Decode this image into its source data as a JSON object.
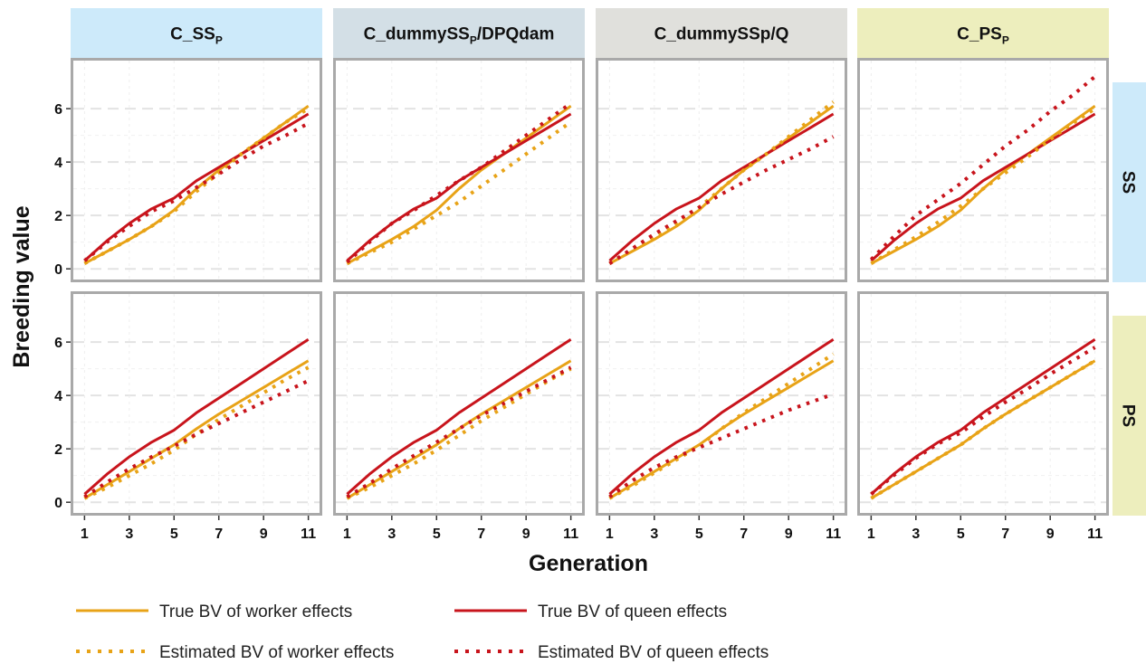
{
  "chart_data": {
    "type": "line",
    "ylabel": "Breeding value",
    "xlabel": "Generation",
    "x": [
      1,
      2,
      3,
      4,
      5,
      6,
      7,
      8,
      9,
      10,
      11
    ],
    "x_ticks": [
      "1",
      "3",
      "5",
      "7",
      "9",
      "11"
    ],
    "xlim": [
      0.5,
      11.5
    ],
    "y_ticks": [
      "0",
      "2",
      "4",
      "6"
    ],
    "ylim": [
      -0.4,
      7.8
    ],
    "grid": true,
    "legend_position": "bottom",
    "columns": [
      {
        "label": "C_SS",
        "subscript": "P",
        "color": "#cdeafa"
      },
      {
        "label": "C_dummySS",
        "subscript": "P",
        "suffix": "/DPQdam",
        "color": "#d3dfe6"
      },
      {
        "label": "C_dummySSp/Q",
        "subscript": "",
        "color": "#e0e0dc"
      },
      {
        "label": "C_PS",
        "subscript": "P",
        "color": "#edeebd"
      }
    ],
    "rows": [
      {
        "label": "SS",
        "color": "#cdeafa"
      },
      {
        "label": "PS",
        "color": "#edeebd"
      }
    ],
    "series_styles": [
      {
        "name": "True BV of worker effects",
        "color": "#e8a317",
        "dash": "solid"
      },
      {
        "name": "True BV of queen effects",
        "color": "#c8141c",
        "dash": "solid"
      },
      {
        "name": "Estimated BV of worker effects",
        "color": "#e8a317",
        "dash": "dotted"
      },
      {
        "name": "Estimated BV of queen effects",
        "color": "#c8141c",
        "dash": "dotted"
      }
    ],
    "panels": [
      {
        "row": "SS",
        "column": "C_SSP",
        "series": [
          {
            "name": "True BV of worker effects",
            "values": [
              0.2,
              0.65,
              1.1,
              1.6,
              2.2,
              3.0,
              3.7,
              4.3,
              4.9,
              5.5,
              6.1
            ]
          },
          {
            "name": "True BV of queen effects",
            "values": [
              0.3,
              1.05,
              1.7,
              2.25,
              2.65,
              3.3,
              3.8,
              4.3,
              4.8,
              5.3,
              5.8
            ]
          },
          {
            "name": "Estimated BV of worker effects",
            "values": [
              0.2,
              0.65,
              1.1,
              1.6,
              2.15,
              2.9,
              3.6,
              4.3,
              4.9,
              5.5,
              6.0
            ]
          },
          {
            "name": "Estimated BV of queen effects",
            "values": [
              0.3,
              1.0,
              1.6,
              2.15,
              2.55,
              3.05,
              3.55,
              4.1,
              4.6,
              5.0,
              5.45
            ]
          }
        ]
      },
      {
        "row": "SS",
        "column": "C_dummySSP/DPQdam",
        "series": [
          {
            "name": "True BV of worker effects",
            "values": [
              0.2,
              0.65,
              1.1,
              1.6,
              2.2,
              3.0,
              3.7,
              4.3,
              4.9,
              5.5,
              6.1
            ]
          },
          {
            "name": "True BV of queen effects",
            "values": [
              0.3,
              1.05,
              1.7,
              2.25,
              2.65,
              3.3,
              3.8,
              4.3,
              4.8,
              5.3,
              5.8
            ]
          },
          {
            "name": "Estimated BV of worker effects",
            "values": [
              0.2,
              0.6,
              1.0,
              1.5,
              2.0,
              2.5,
              3.1,
              3.7,
              4.3,
              4.9,
              5.5
            ]
          },
          {
            "name": "Estimated BV of queen effects",
            "values": [
              0.25,
              1.0,
              1.7,
              2.2,
              2.75,
              3.3,
              3.8,
              4.4,
              5.0,
              5.6,
              6.2
            ]
          }
        ]
      },
      {
        "row": "SS",
        "column": "C_dummySSp/Q",
        "series": [
          {
            "name": "True BV of worker effects",
            "values": [
              0.2,
              0.65,
              1.1,
              1.6,
              2.2,
              3.0,
              3.7,
              4.3,
              4.9,
              5.5,
              6.1
            ]
          },
          {
            "name": "True BV of queen effects",
            "values": [
              0.3,
              1.05,
              1.7,
              2.25,
              2.65,
              3.3,
              3.8,
              4.3,
              4.8,
              5.3,
              5.8
            ]
          },
          {
            "name": "Estimated BV of worker effects",
            "values": [
              0.2,
              0.7,
              1.2,
              1.7,
              2.3,
              3.0,
              3.7,
              4.3,
              4.95,
              5.6,
              6.25
            ]
          },
          {
            "name": "Estimated BV of queen effects",
            "values": [
              0.2,
              0.75,
              1.3,
              1.8,
              2.3,
              2.8,
              3.25,
              3.7,
              4.1,
              4.5,
              4.95
            ]
          }
        ]
      },
      {
        "row": "SS",
        "column": "C_PSP",
        "series": [
          {
            "name": "True BV of worker effects",
            "values": [
              0.2,
              0.65,
              1.1,
              1.6,
              2.2,
              3.0,
              3.7,
              4.3,
              4.9,
              5.5,
              6.1
            ]
          },
          {
            "name": "True BV of queen effects",
            "values": [
              0.3,
              1.05,
              1.7,
              2.25,
              2.65,
              3.3,
              3.8,
              4.3,
              4.8,
              5.3,
              5.8
            ]
          },
          {
            "name": "Estimated BV of worker effects",
            "values": [
              0.2,
              0.7,
              1.2,
              1.75,
              2.35,
              3.0,
              3.6,
              4.2,
              4.85,
              5.45,
              6.0
            ]
          },
          {
            "name": "Estimated BV of queen effects",
            "values": [
              0.35,
              1.2,
              2.0,
              2.6,
              3.2,
              3.9,
              4.6,
              5.2,
              5.9,
              6.5,
              7.2
            ]
          }
        ]
      },
      {
        "row": "PS",
        "column": "C_SSP",
        "series": [
          {
            "name": "True BV of worker effects",
            "values": [
              0.15,
              0.65,
              1.15,
              1.65,
              2.15,
              2.75,
              3.3,
              3.8,
              4.3,
              4.8,
              5.3
            ]
          },
          {
            "name": "True BV of queen effects",
            "values": [
              0.3,
              1.05,
              1.7,
              2.25,
              2.7,
              3.35,
              3.9,
              4.45,
              5.0,
              5.55,
              6.1
            ]
          },
          {
            "name": "Estimated BV of worker effects",
            "values": [
              0.15,
              0.55,
              1.0,
              1.45,
              1.95,
              2.55,
              3.1,
              3.6,
              4.1,
              4.6,
              5.05
            ]
          },
          {
            "name": "Estimated BV of queen effects",
            "values": [
              0.2,
              0.75,
              1.25,
              1.7,
              2.1,
              2.55,
              2.95,
              3.35,
              3.75,
              4.15,
              4.55
            ]
          }
        ]
      },
      {
        "row": "PS",
        "column": "C_dummySSP/DPQdam",
        "series": [
          {
            "name": "True BV of worker effects",
            "values": [
              0.15,
              0.65,
              1.15,
              1.65,
              2.15,
              2.75,
              3.3,
              3.8,
              4.3,
              4.8,
              5.3
            ]
          },
          {
            "name": "True BV of queen effects",
            "values": [
              0.3,
              1.05,
              1.7,
              2.25,
              2.7,
              3.35,
              3.9,
              4.45,
              5.0,
              5.55,
              6.1
            ]
          },
          {
            "name": "Estimated BV of worker effects",
            "values": [
              0.15,
              0.55,
              1.0,
              1.45,
              1.95,
              2.5,
              3.05,
              3.55,
              4.05,
              4.55,
              5.0
            ]
          },
          {
            "name": "Estimated BV of queen effects",
            "values": [
              0.2,
              0.7,
              1.25,
              1.75,
              2.25,
              2.75,
              3.25,
              3.7,
              4.15,
              4.6,
              5.05
            ]
          }
        ]
      },
      {
        "row": "PS",
        "column": "C_dummySSp/Q",
        "series": [
          {
            "name": "True BV of worker effects",
            "values": [
              0.15,
              0.65,
              1.15,
              1.65,
              2.15,
              2.75,
              3.3,
              3.8,
              4.3,
              4.8,
              5.3
            ]
          },
          {
            "name": "True BV of queen effects",
            "values": [
              0.3,
              1.05,
              1.7,
              2.25,
              2.7,
              3.35,
              3.9,
              4.45,
              5.0,
              5.55,
              6.1
            ]
          },
          {
            "name": "Estimated BV of worker effects",
            "values": [
              0.15,
              0.6,
              1.1,
              1.6,
              2.1,
              2.75,
              3.35,
              3.9,
              4.45,
              5.0,
              5.55
            ]
          },
          {
            "name": "Estimated BV of queen effects",
            "values": [
              0.2,
              0.8,
              1.3,
              1.7,
              2.05,
              2.4,
              2.75,
              3.1,
              3.45,
              3.75,
              4.05
            ]
          }
        ]
      },
      {
        "row": "PS",
        "column": "C_PSP",
        "series": [
          {
            "name": "True BV of worker effects",
            "values": [
              0.15,
              0.65,
              1.15,
              1.65,
              2.15,
              2.75,
              3.3,
              3.8,
              4.3,
              4.8,
              5.3
            ]
          },
          {
            "name": "True BV of queen effects",
            "values": [
              0.3,
              1.05,
              1.7,
              2.25,
              2.7,
              3.35,
              3.9,
              4.45,
              5.0,
              5.55,
              6.1
            ]
          },
          {
            "name": "Estimated BV of worker effects",
            "values": [
              0.15,
              0.65,
              1.15,
              1.65,
              2.15,
              2.75,
              3.3,
              3.8,
              4.3,
              4.8,
              5.3
            ]
          },
          {
            "name": "Estimated BV of queen effects",
            "values": [
              0.3,
              1.0,
              1.65,
              2.2,
              2.6,
              3.2,
              3.75,
              4.25,
              4.8,
              5.3,
              5.8
            ]
          }
        ]
      }
    ]
  }
}
